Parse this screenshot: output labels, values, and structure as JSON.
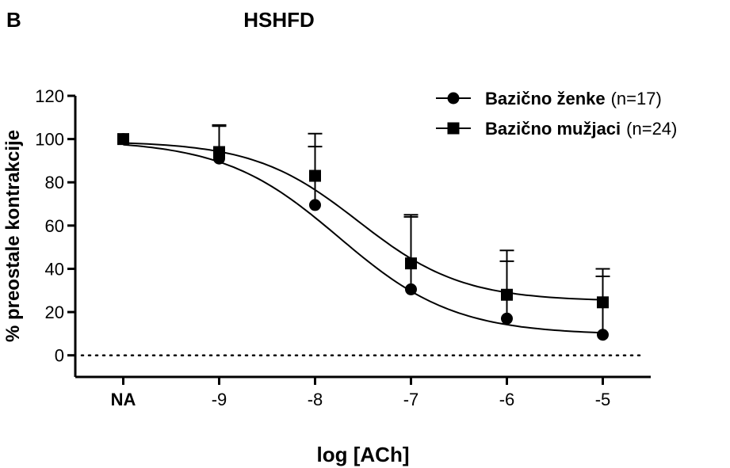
{
  "panel_label": "B",
  "chart_data": {
    "type": "line",
    "title": "HSHFD",
    "xlabel": "log [ACh]",
    "ylabel": "% preostale kontrakcije",
    "x_categories": [
      "NA",
      "-9",
      "-8",
      "-7",
      "-6",
      "-5"
    ],
    "x_values": [
      -10,
      -9,
      -8,
      -7,
      -6,
      -5
    ],
    "xlim": [
      -10.5,
      -4.5
    ],
    "ylim": [
      -10,
      120
    ],
    "yticks": [
      0,
      20,
      40,
      60,
      80,
      100,
      120
    ],
    "reference_line": {
      "y": 0,
      "style": "dotted"
    },
    "legend_position": "top-right",
    "series": [
      {
        "name": "Bazično ženke",
        "n_label": "(n=17)",
        "marker": "circle",
        "y": [
          100,
          91,
          69.5,
          30.5,
          17,
          9.5
        ],
        "error_upper": [
          0,
          15,
          27,
          34.5,
          26.5,
          27
        ],
        "fit": {
          "bottom": 9.5,
          "top": 99.5,
          "logEC50": -7.75,
          "hill": 0.72
        }
      },
      {
        "name": "Bazično mužjaci",
        "n_label": "(n=24)",
        "marker": "square",
        "y": [
          100,
          94,
          83,
          42.5,
          28,
          24.5
        ],
        "error_upper": [
          0,
          12.5,
          19.5,
          21.5,
          20.5,
          15.5
        ],
        "fit": {
          "bottom": 25,
          "top": 99,
          "logEC50": -7.55,
          "hill": 0.8
        }
      }
    ]
  }
}
